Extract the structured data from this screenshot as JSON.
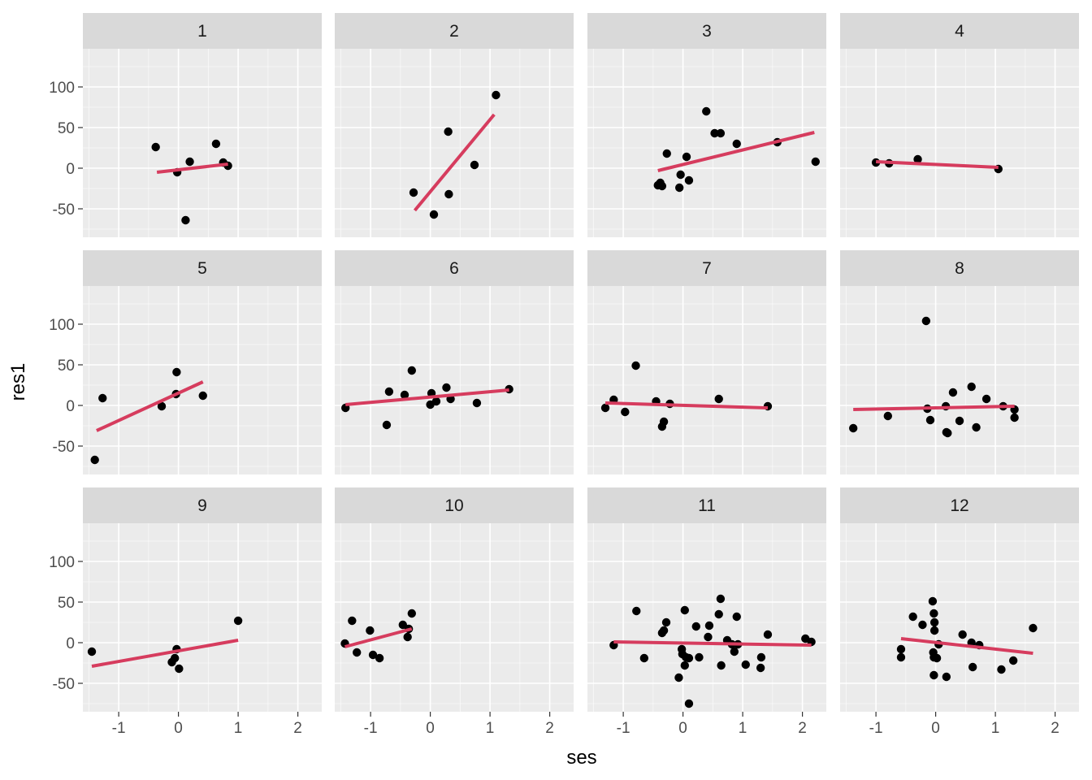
{
  "chart_data": {
    "type": "scatter",
    "xlabel": "ses",
    "ylabel": "res1",
    "xlim": [
      -1.6,
      2.4
    ],
    "ylim": [
      -85,
      147
    ],
    "x_ticks": [
      -1,
      0,
      1,
      2
    ],
    "y_ticks": [
      -50,
      0,
      50,
      100
    ],
    "x_tick_labels": [
      "-1",
      "0",
      "1",
      "2"
    ],
    "y_tick_labels": [
      "-50",
      "0",
      "50",
      "100"
    ],
    "grid": true,
    "legend": "none",
    "colors": {
      "panel_background": "#ebebeb",
      "strip_background": "#d9d9d9",
      "gridline": "#ffffff",
      "point": "#000000",
      "fit_line": "#d63c5e"
    },
    "panels": [
      {
        "label": "1",
        "points": [
          [
            -0.38,
            26
          ],
          [
            -0.02,
            -5
          ],
          [
            0.19,
            8
          ],
          [
            0.12,
            -64
          ],
          [
            0.63,
            30
          ],
          [
            0.75,
            7
          ],
          [
            0.83,
            3
          ]
        ],
        "fit": [
          [
            -0.36,
            -5
          ],
          [
            0.83,
            5
          ]
        ]
      },
      {
        "label": "2",
        "points": [
          [
            -0.28,
            -30
          ],
          [
            0.06,
            -57
          ],
          [
            0.3,
            45
          ],
          [
            0.31,
            -32
          ],
          [
            0.74,
            4
          ],
          [
            1.1,
            90
          ]
        ],
        "fit": [
          [
            -0.26,
            -52
          ],
          [
            1.07,
            66
          ]
        ]
      },
      {
        "label": "3",
        "points": [
          [
            -0.42,
            -21
          ],
          [
            -0.38,
            -18
          ],
          [
            -0.35,
            -22
          ],
          [
            -0.27,
            18
          ],
          [
            -0.06,
            -24
          ],
          [
            -0.04,
            -8
          ],
          [
            0.06,
            14
          ],
          [
            0.1,
            -15
          ],
          [
            0.39,
            70
          ],
          [
            0.53,
            43
          ],
          [
            0.63,
            43
          ],
          [
            0.9,
            30
          ],
          [
            1.58,
            32
          ],
          [
            2.22,
            8
          ]
        ],
        "fit": [
          [
            -0.42,
            -3
          ],
          [
            2.2,
            44
          ]
        ]
      },
      {
        "label": "4",
        "points": [
          [
            -1.0,
            7
          ],
          [
            -0.78,
            6
          ],
          [
            -0.3,
            11
          ],
          [
            1.05,
            -1
          ]
        ],
        "fit": [
          [
            -1.0,
            8
          ],
          [
            1.05,
            1
          ]
        ]
      },
      {
        "label": "5",
        "points": [
          [
            -1.4,
            -67
          ],
          [
            -1.27,
            9
          ],
          [
            -0.28,
            -1
          ],
          [
            -0.04,
            14
          ],
          [
            -0.03,
            41
          ],
          [
            0.41,
            12
          ]
        ],
        "fit": [
          [
            -1.37,
            -31
          ],
          [
            0.41,
            29
          ]
        ]
      },
      {
        "label": "6",
        "points": [
          [
            -1.42,
            -3
          ],
          [
            -0.73,
            -24
          ],
          [
            -0.69,
            17
          ],
          [
            -0.43,
            13
          ],
          [
            -0.31,
            43
          ],
          [
            0.0,
            1
          ],
          [
            0.02,
            15
          ],
          [
            0.1,
            5
          ],
          [
            0.27,
            22
          ],
          [
            0.34,
            8
          ],
          [
            0.78,
            3
          ],
          [
            1.32,
            20
          ]
        ],
        "fit": [
          [
            -1.42,
            1
          ],
          [
            1.32,
            19
          ]
        ]
      },
      {
        "label": "7",
        "points": [
          [
            -1.3,
            -3
          ],
          [
            -1.16,
            7
          ],
          [
            -0.97,
            -8
          ],
          [
            -0.79,
            49
          ],
          [
            -0.45,
            5
          ],
          [
            -0.35,
            -26
          ],
          [
            -0.32,
            -20
          ],
          [
            -0.22,
            2
          ],
          [
            0.6,
            8
          ],
          [
            1.42,
            -1
          ]
        ],
        "fit": [
          [
            -1.3,
            3
          ],
          [
            1.42,
            -3
          ]
        ]
      },
      {
        "label": "8",
        "points": [
          [
            -1.38,
            -28
          ],
          [
            -0.8,
            -13
          ],
          [
            -0.16,
            104
          ],
          [
            -0.14,
            -4
          ],
          [
            -0.09,
            -18
          ],
          [
            0.17,
            -1
          ],
          [
            0.18,
            -33
          ],
          [
            0.2,
            -34
          ],
          [
            0.29,
            16
          ],
          [
            0.4,
            -19
          ],
          [
            0.6,
            23
          ],
          [
            0.68,
            -27
          ],
          [
            0.85,
            8
          ],
          [
            1.13,
            -1
          ],
          [
            1.32,
            -5
          ],
          [
            1.32,
            -15
          ]
        ],
        "fit": [
          [
            -1.38,
            -5
          ],
          [
            1.32,
            -1
          ]
        ]
      },
      {
        "label": "9",
        "points": [
          [
            -1.45,
            -11
          ],
          [
            -0.11,
            -24
          ],
          [
            -0.06,
            -19
          ],
          [
            -0.03,
            -8
          ],
          [
            0.01,
            -32
          ],
          [
            1.0,
            27
          ]
        ],
        "fit": [
          [
            -1.45,
            -29
          ],
          [
            1.0,
            3
          ]
        ]
      },
      {
        "label": "10",
        "points": [
          [
            -1.43,
            -1
          ],
          [
            -1.31,
            27
          ],
          [
            -1.23,
            -12
          ],
          [
            -1.01,
            15
          ],
          [
            -0.96,
            -15
          ],
          [
            -0.85,
            -19
          ],
          [
            -0.46,
            22
          ],
          [
            -0.38,
            7
          ],
          [
            -0.36,
            17
          ],
          [
            -0.31,
            36
          ]
        ],
        "fit": [
          [
            -1.43,
            -5
          ],
          [
            -0.31,
            17
          ]
        ]
      },
      {
        "label": "11",
        "points": [
          [
            -1.16,
            -3
          ],
          [
            -0.78,
            39
          ],
          [
            -0.65,
            -19
          ],
          [
            -0.35,
            12
          ],
          [
            -0.32,
            15
          ],
          [
            -0.28,
            25
          ],
          [
            -0.07,
            -43
          ],
          [
            -0.02,
            -8
          ],
          [
            -0.01,
            -14
          ],
          [
            0.03,
            40
          ],
          [
            0.03,
            -28
          ],
          [
            0.05,
            -18
          ],
          [
            0.1,
            -75
          ],
          [
            0.1,
            -19
          ],
          [
            0.22,
            20
          ],
          [
            0.27,
            -18
          ],
          [
            0.42,
            7
          ],
          [
            0.44,
            21
          ],
          [
            0.6,
            35
          ],
          [
            0.63,
            54
          ],
          [
            0.64,
            -28
          ],
          [
            0.74,
            3
          ],
          [
            0.82,
            -2
          ],
          [
            0.86,
            -11
          ],
          [
            0.9,
            32
          ],
          [
            0.92,
            -2
          ],
          [
            1.05,
            -27
          ],
          [
            1.3,
            -31
          ],
          [
            1.31,
            -18
          ],
          [
            1.42,
            10
          ],
          [
            2.05,
            5
          ],
          [
            2.15,
            1
          ]
        ],
        "fit": [
          [
            -1.16,
            1
          ],
          [
            2.15,
            -3
          ]
        ]
      },
      {
        "label": "12",
        "points": [
          [
            -0.58,
            -8
          ],
          [
            -0.58,
            -18
          ],
          [
            -0.38,
            32
          ],
          [
            -0.22,
            22
          ],
          [
            -0.05,
            51
          ],
          [
            -0.03,
            36
          ],
          [
            -0.04,
            -12
          ],
          [
            -0.03,
            -40
          ],
          [
            -0.03,
            -18
          ],
          [
            -0.02,
            25
          ],
          [
            -0.02,
            15
          ],
          [
            0.02,
            -19
          ],
          [
            0.05,
            -2
          ],
          [
            0.18,
            -42
          ],
          [
            0.45,
            10
          ],
          [
            0.6,
            0
          ],
          [
            0.62,
            -30
          ],
          [
            0.73,
            -3
          ],
          [
            1.1,
            -33
          ],
          [
            1.3,
            -22
          ],
          [
            1.63,
            18
          ]
        ],
        "fit": [
          [
            -0.58,
            5
          ],
          [
            1.63,
            -13
          ]
        ]
      }
    ]
  }
}
